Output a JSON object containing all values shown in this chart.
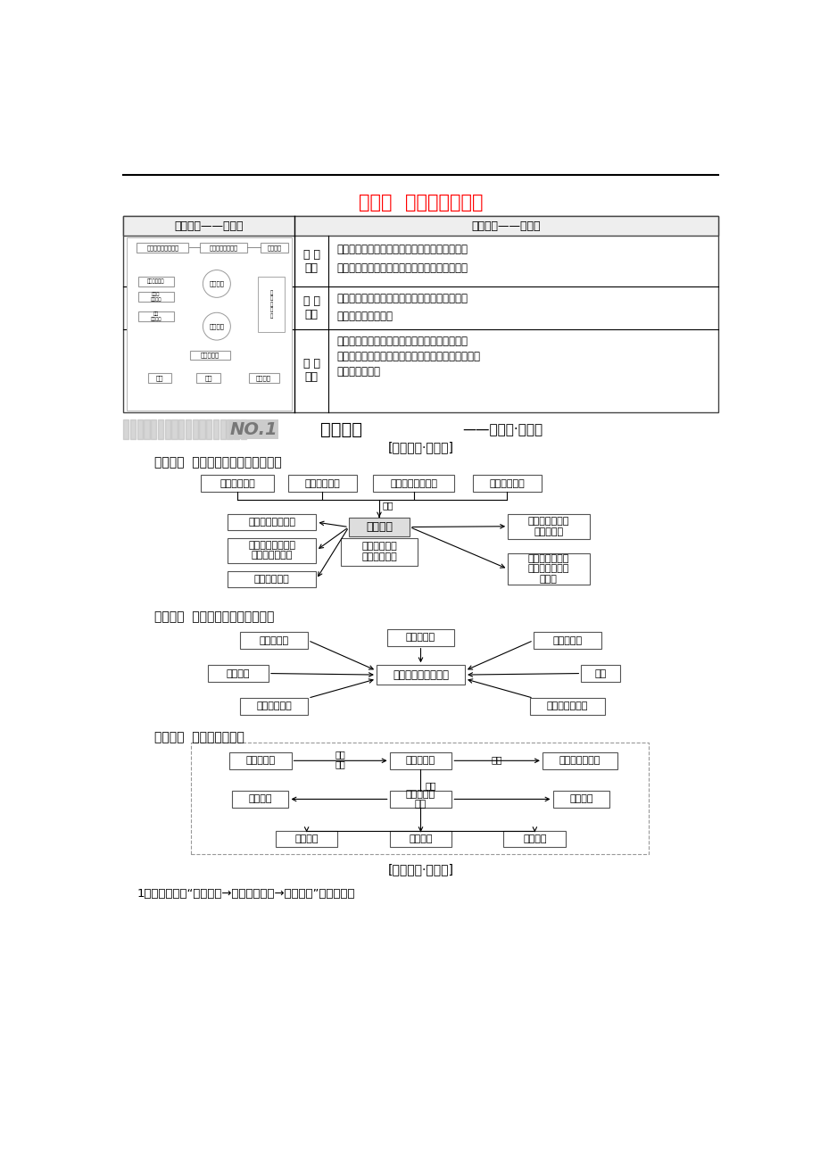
{
  "title": "第三讲  生态环境的保护",
  "title_color": "#FF0000",
  "bg_color": "#FFFFFF",
  "page_width": 9.2,
  "page_height": 13.02,
  "table_header": [
    "知识体系——定内容",
    "核心素养——定能力"
  ],
  "knowledge1_title": "知识点一  人口增长对生态环境的影响",
  "knowledge2_title": "知识点二  关注全球性生态环境问题",
  "knowledge3_title": "知识点三  保护生物多样性",
  "subsection1": "[基础知识·系统化]",
  "subsection2": "[基本技能·问题化]",
  "question1": "1．据梅托斯的“人口膨胀→自然资源耗竭→环境污染”模型图分析"
}
